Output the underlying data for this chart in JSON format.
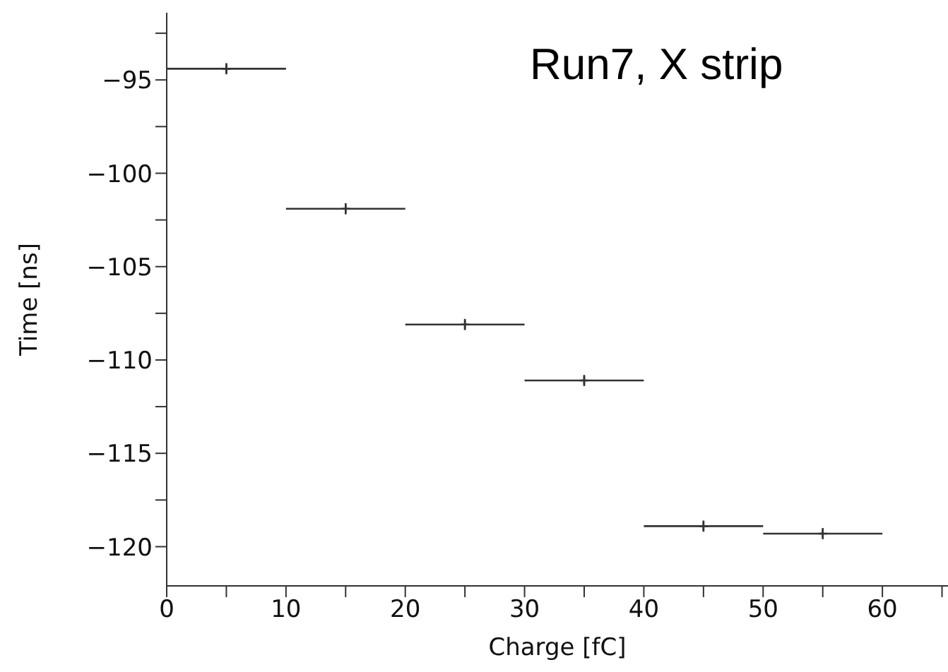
{
  "chart_data": {
    "type": "scatter",
    "xlabel": "Charge [fC]",
    "ylabel": "Time [ns]",
    "annotations": [
      "Run7, X strip"
    ],
    "x": [
      5,
      15,
      25,
      35,
      45,
      55
    ],
    "series": [
      {
        "color": "#333333",
        "values": [
          -94.4,
          -101.9,
          -108.1,
          -111.1,
          -118.9,
          -119.3
        ],
        "xerrors": [
          5,
          5,
          5,
          5,
          5,
          5
        ],
        "errors": [
          0.3,
          0.3,
          0.3,
          0.3,
          0.3,
          0.3
        ]
      }
    ],
    "marker": "cross",
    "xlim": [
      0,
      65.5
    ],
    "xticks": [
      0,
      {
        "value": 5,
        "label": null
      },
      10,
      {
        "value": 15,
        "label": null
      },
      20,
      {
        "value": 25,
        "label": null
      },
      30,
      {
        "value": 35,
        "label": null
      },
      40,
      {
        "value": 45,
        "label": null
      },
      50,
      {
        "value": 55,
        "label": null
      },
      60,
      {
        "value": 65,
        "label": null
      }
    ],
    "ylim": [
      -122.1,
      -91.4
    ],
    "yticks": [
      {
        "value": -92.5,
        "label": null
      },
      -95,
      {
        "value": -97.5,
        "label": null
      },
      -100,
      {
        "value": -102.5,
        "label": null
      },
      -105,
      {
        "value": -107.5,
        "label": null
      },
      -110,
      {
        "value": -112.5,
        "label": null
      },
      -115,
      {
        "value": -117.5,
        "label": null
      },
      -120
    ],
    "grid": false,
    "legend": false
  }
}
